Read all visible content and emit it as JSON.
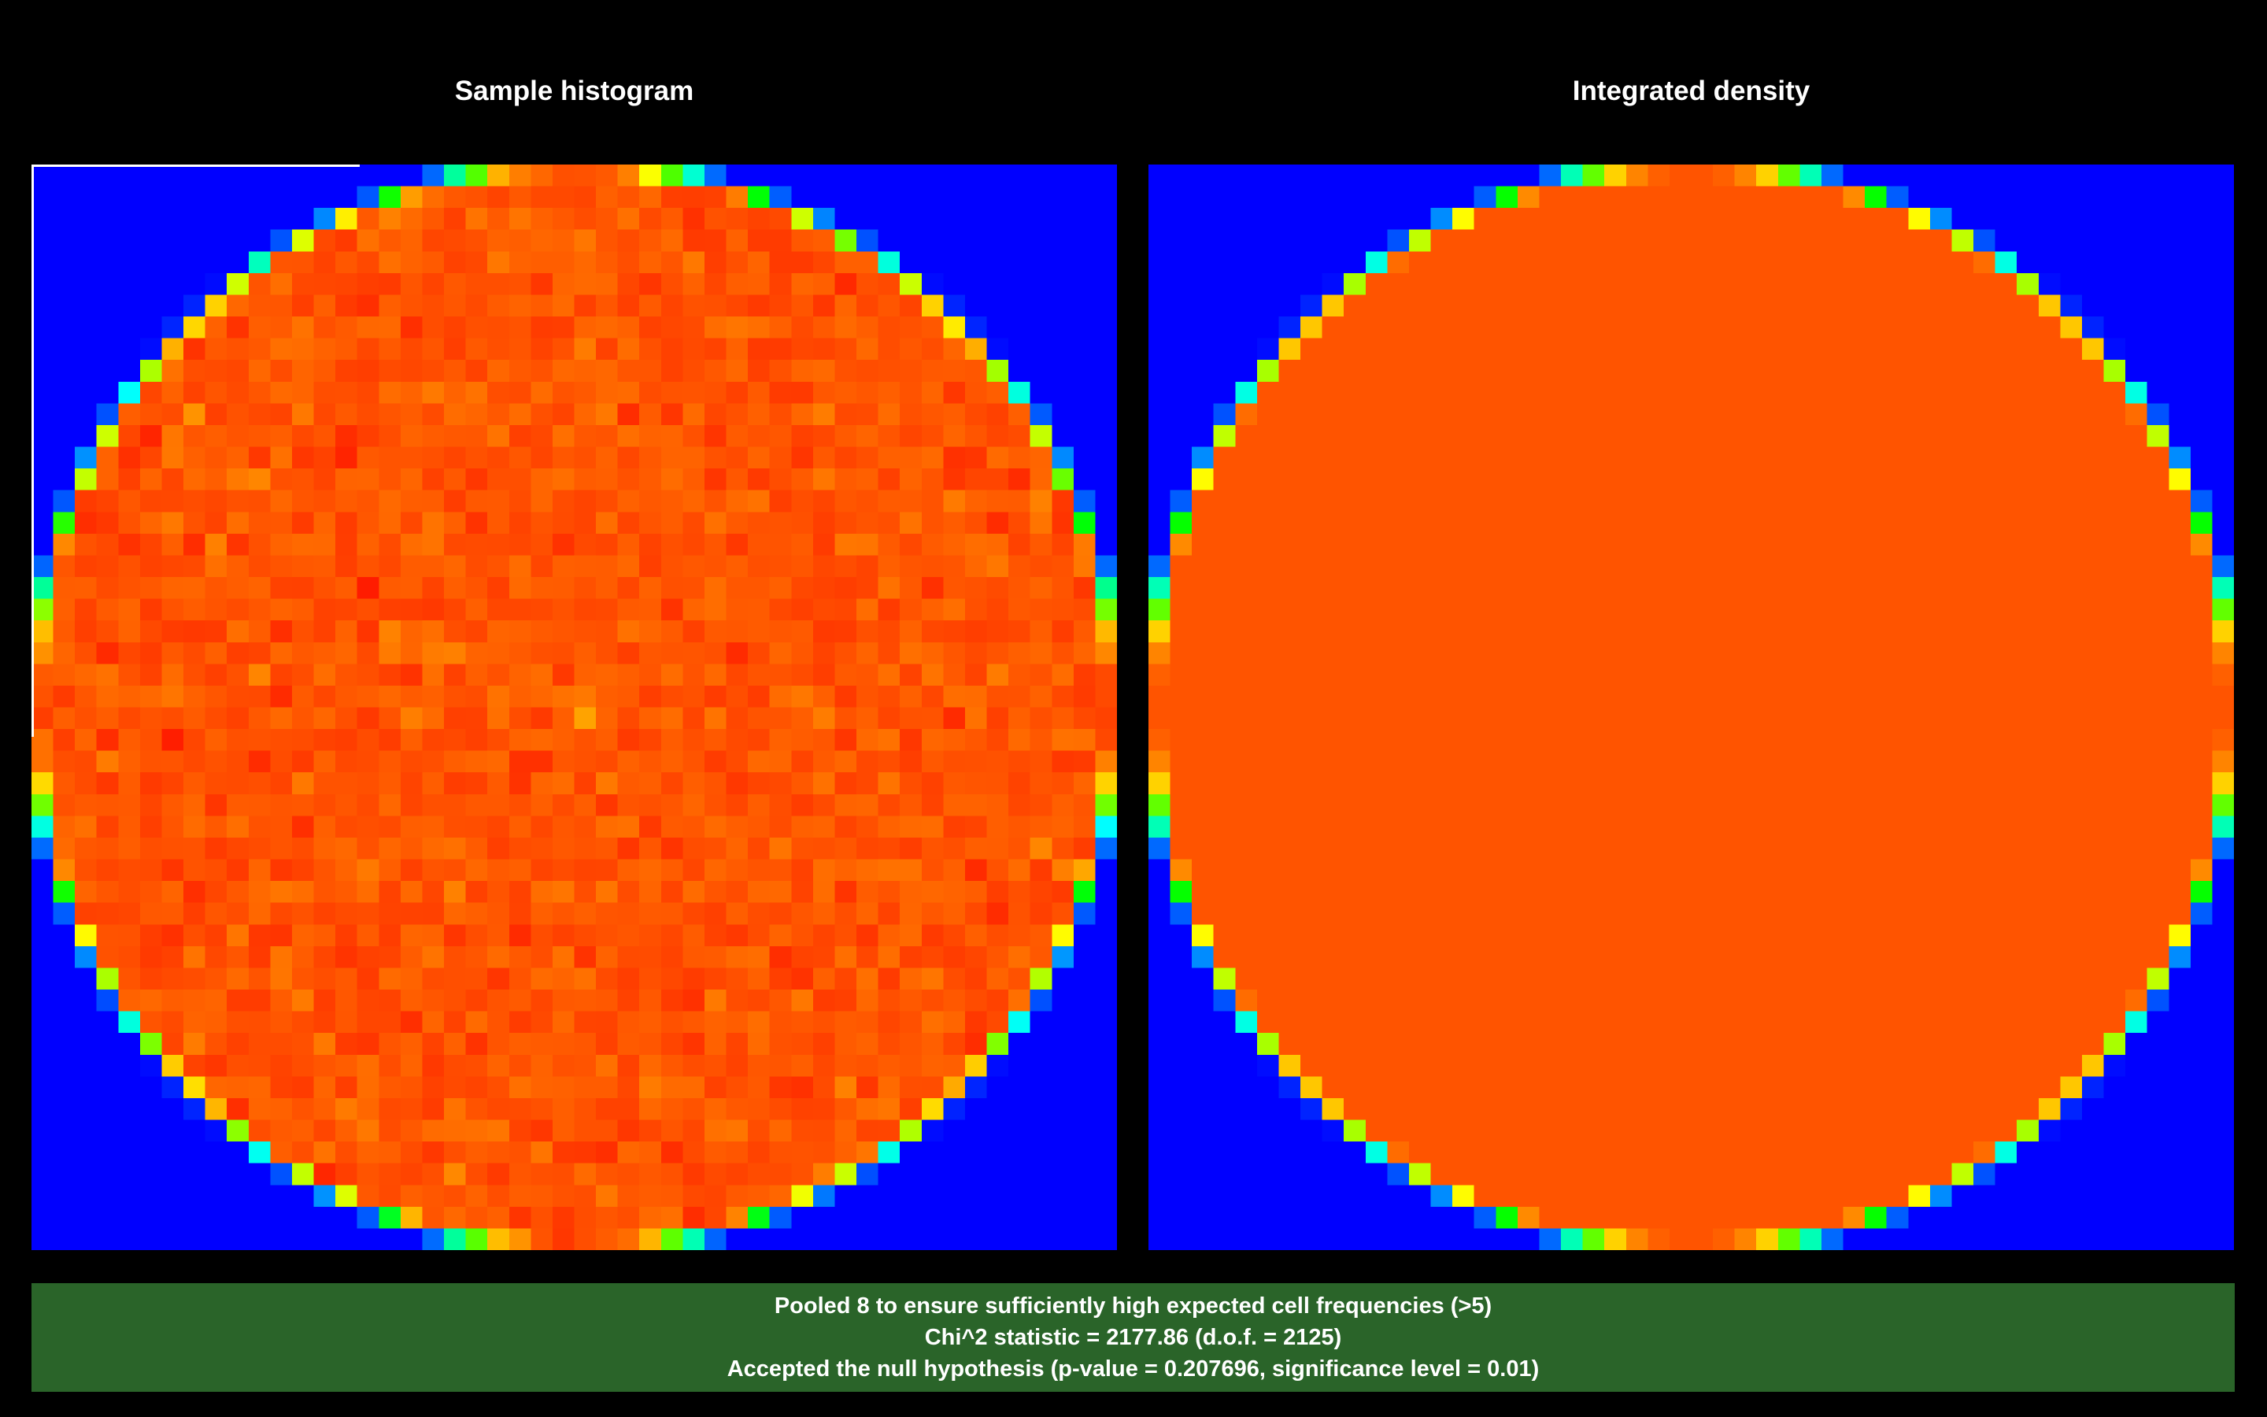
{
  "chart_data": [
    {
      "type": "heatmap",
      "title": "Sample histogram",
      "grid": "50x50 bins over a unit disk (cells outside the disk near zero)",
      "colormap": [
        "#0000ff",
        "#00ffff",
        "#00ff00",
        "#ffff00",
        "#ff8000",
        "#ff0000"
      ],
      "expected_cell_frequency": "~uniform, rendered orange-red with random fluctuation",
      "seed": 12345
    },
    {
      "type": "heatmap",
      "title": "Integrated density",
      "grid": "50x50 bins over a unit disk",
      "colormap": [
        "#0000ff",
        "#00ffff",
        "#00ff00",
        "#ffff00",
        "#ff8000",
        "#ff0000"
      ],
      "interior_color": "#ff5f00"
    }
  ],
  "status": {
    "line1": "Pooled 8 to ensure sufficiently high expected cell frequencies (>5)",
    "line2": "Chi^2 statistic = 2177.86 (d.o.f. = 2125)",
    "line3": "Accepted the null hypothesis (p-value = 0.207696, significance level = 0.01)",
    "bg_color": "#2a6429"
  },
  "colors": {
    "background": "#000000",
    "outside_disk": "#0000ff"
  }
}
